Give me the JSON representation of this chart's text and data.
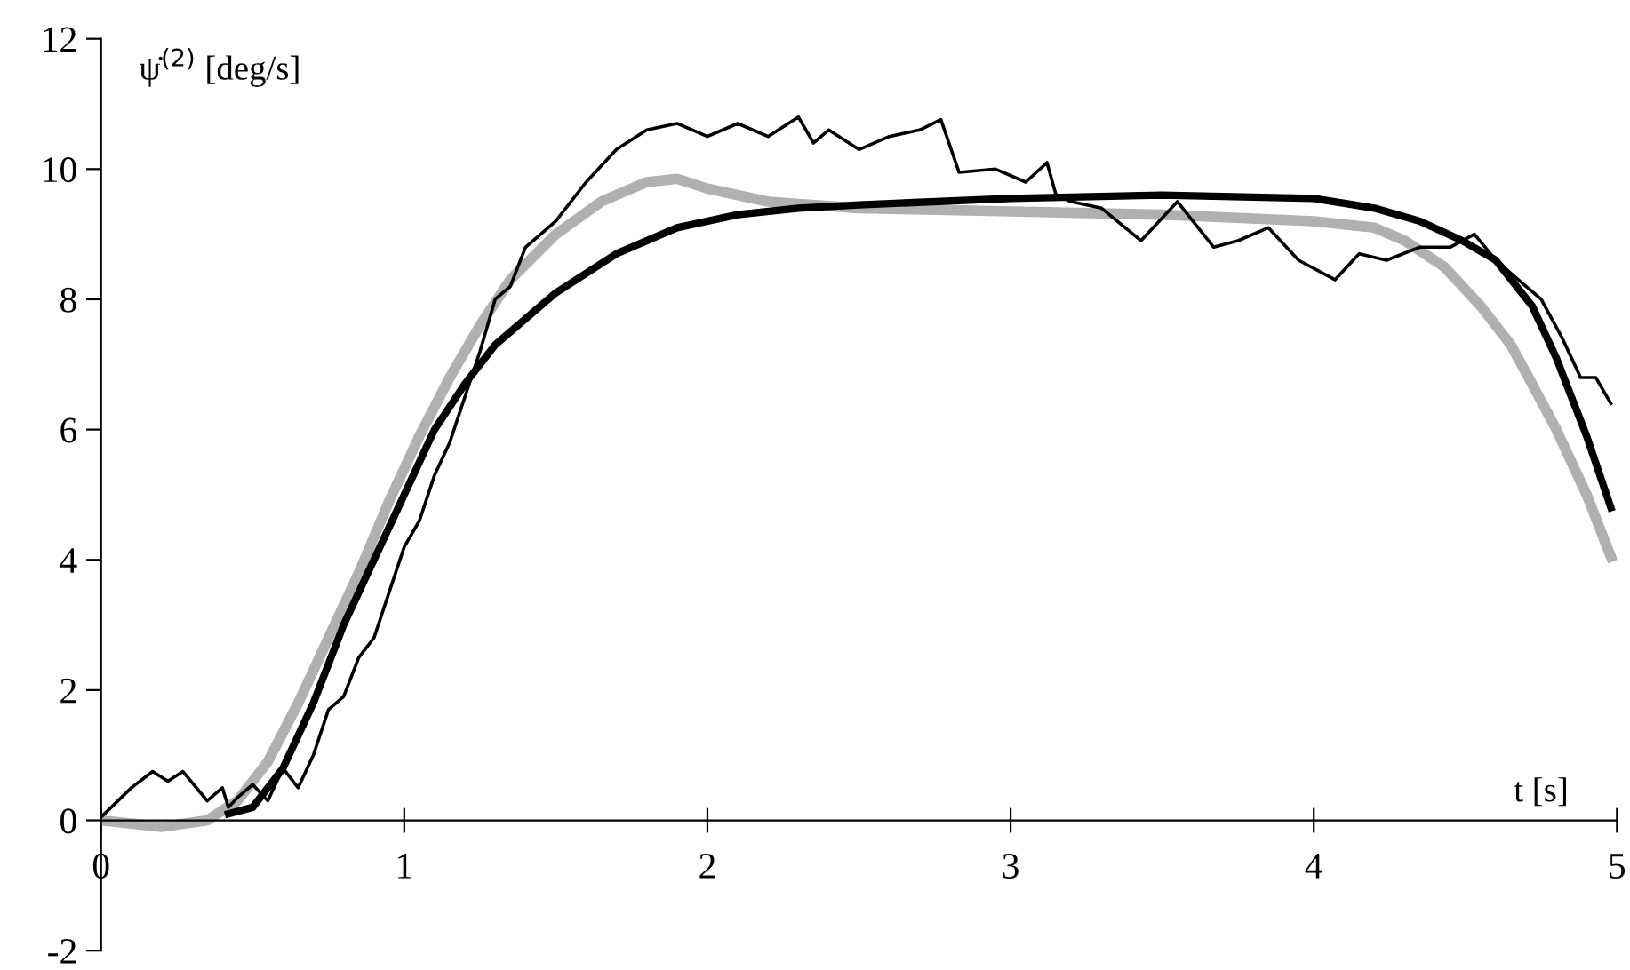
{
  "chart_data": {
    "type": "line",
    "xlabel": "t [s]",
    "ylabel": "ψ̇$^{(2)}$ [deg/s]",
    "xlim": [
      0,
      5
    ],
    "xticks": [
      0,
      1,
      2,
      3,
      4,
      5
    ],
    "ylim": [
      -2,
      12
    ],
    "yticks": [
      -2,
      0,
      2,
      4,
      6,
      8,
      10,
      12
    ],
    "grid": false,
    "legend": false,
    "marker": "none",
    "line_style": "solid",
    "series": [
      {
        "color": "#000000",
        "x": [
          0,
          0.1,
          0.17,
          0.22,
          0.27,
          0.35,
          0.4,
          0.42,
          0.45,
          0.5,
          0.55,
          0.6,
          0.65,
          0.7,
          0.75,
          0.8,
          0.85,
          0.9,
          0.95,
          1.0,
          1.05,
          1.1,
          1.15,
          1.2,
          1.25,
          1.3,
          1.35,
          1.4,
          1.5,
          1.6,
          1.7,
          1.8,
          1.9,
          2.0,
          2.1,
          2.2,
          2.3,
          2.35,
          2.4,
          2.5,
          2.6,
          2.7,
          2.77,
          2.83,
          2.95,
          3.05,
          3.12,
          3.15,
          3.2,
          3.3,
          3.43,
          3.55,
          3.67,
          3.75,
          3.85,
          3.95,
          4.07,
          4.15,
          4.24,
          4.35,
          4.45,
          4.53,
          4.6,
          4.7,
          4.75,
          4.82,
          4.88,
          4.93,
          4.98
        ],
        "values": [
          0.05,
          0.5,
          0.75,
          0.6,
          0.75,
          0.3,
          0.5,
          0.2,
          0.35,
          0.55,
          0.3,
          0.8,
          0.5,
          1.0,
          1.7,
          1.9,
          2.5,
          2.8,
          3.5,
          4.2,
          4.6,
          5.3,
          5.8,
          6.5,
          7.2,
          8.0,
          8.2,
          8.8,
          9.2,
          9.8,
          10.3,
          10.6,
          10.7,
          10.5,
          10.7,
          10.5,
          10.8,
          10.4,
          10.6,
          10.3,
          10.5,
          10.6,
          10.76,
          9.95,
          10.0,
          9.8,
          10.1,
          9.6,
          9.5,
          9.4,
          8.9,
          9.5,
          8.8,
          8.9,
          9.1,
          8.6,
          8.3,
          8.7,
          8.6,
          8.8,
          8.8,
          9.0,
          8.6,
          8.2,
          8.0,
          7.4,
          6.8,
          6.8,
          6.4
        ]
      },
      {
        "color": "#000000",
        "x": [
          0.42,
          0.5,
          0.6,
          0.7,
          0.8,
          0.9,
          1.0,
          1.1,
          1.2,
          1.3,
          1.5,
          1.7,
          1.9,
          2.1,
          2.3,
          2.5,
          3.0,
          3.5,
          4.0,
          4.2,
          4.35,
          4.49,
          4.6,
          4.72,
          4.8,
          4.9,
          4.98
        ],
        "values": [
          0.1,
          0.2,
          0.8,
          1.8,
          3.0,
          4.0,
          5.0,
          6.0,
          6.7,
          7.3,
          8.1,
          8.7,
          9.1,
          9.3,
          9.4,
          9.45,
          9.55,
          9.6,
          9.55,
          9.4,
          9.2,
          8.9,
          8.6,
          7.9,
          7.1,
          5.9,
          4.8
        ]
      },
      {
        "color": "#b0b0b0",
        "x": [
          0,
          0.2,
          0.35,
          0.45,
          0.55,
          0.65,
          0.75,
          0.85,
          0.95,
          1.05,
          1.15,
          1.25,
          1.35,
          1.5,
          1.65,
          1.8,
          1.9,
          2.0,
          2.2,
          2.5,
          3.0,
          3.5,
          4.0,
          4.2,
          4.3,
          4.43,
          4.55,
          4.65,
          4.72,
          4.8,
          4.9,
          4.98
        ],
        "values": [
          0,
          -0.1,
          0,
          0.3,
          0.9,
          1.8,
          2.8,
          3.8,
          4.9,
          5.9,
          6.8,
          7.6,
          8.3,
          9.0,
          9.5,
          9.8,
          9.85,
          9.7,
          9.5,
          9.4,
          9.35,
          9.3,
          9.2,
          9.1,
          8.9,
          8.5,
          7.9,
          7.3,
          6.7,
          6.0,
          5.0,
          4.05
        ]
      }
    ]
  }
}
